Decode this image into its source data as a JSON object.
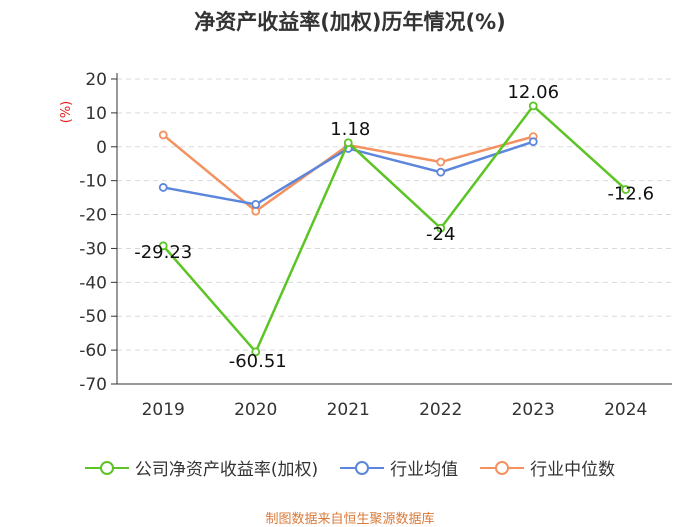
{
  "chart_data": {
    "type": "line",
    "title": "净资产收益率(加权)历年情况(%)",
    "ylabel": "(%)",
    "xlabel": "",
    "categories": [
      "2019",
      "2020",
      "2021",
      "2022",
      "2023",
      "2024"
    ],
    "ylim": [
      -70,
      20
    ],
    "yticks": [
      20,
      10,
      0,
      -10,
      -20,
      -30,
      -40,
      -50,
      -60,
      -70
    ],
    "grid": true,
    "legend_position": "bottom",
    "series": [
      {
        "name": "公司净资产收益率(加权)",
        "color": "#5cc424",
        "values": [
          -29.23,
          -60.51,
          1.18,
          -24,
          12.06,
          -12.6
        ],
        "labels": [
          "-29.23",
          "-60.51",
          "1.18",
          "-24",
          "12.06",
          "-12.6"
        ]
      },
      {
        "name": "行业均值",
        "color": "#5b86db",
        "values": [
          -12,
          -17,
          -0.5,
          -7.5,
          1.5,
          null
        ]
      },
      {
        "name": "行业中位数",
        "color": "#f3915f",
        "values": [
          3.5,
          -19,
          0.5,
          -4.5,
          3,
          null
        ]
      }
    ]
  },
  "footer": {
    "source": "制图数据来自恒生聚源数据库"
  }
}
